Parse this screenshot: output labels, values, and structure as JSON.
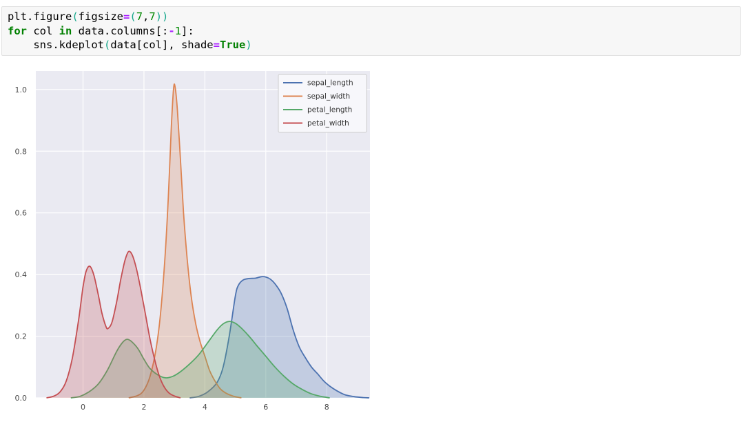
{
  "code_cell": {
    "colors": {
      "plain": "#000000",
      "keyword": "#008000",
      "number": "#008800",
      "operator": "#aa22ff",
      "bracket": "#17a88c"
    },
    "lines": [
      [
        {
          "t": "plt.figure",
          "s": "p"
        },
        {
          "t": "(",
          "s": "br"
        },
        {
          "t": "figsize",
          "s": "p"
        },
        {
          "t": "=",
          "s": "op"
        },
        {
          "t": "(",
          "s": "br"
        },
        {
          "t": "7",
          "s": "num"
        },
        {
          "t": ",",
          "s": "p"
        },
        {
          "t": "7",
          "s": "num"
        },
        {
          "t": "))",
          "s": "br"
        }
      ],
      [
        {
          "t": "for",
          "s": "kw"
        },
        {
          "t": " col ",
          "s": "p"
        },
        {
          "t": "in",
          "s": "kw"
        },
        {
          "t": " data.columns[:",
          "s": "p"
        },
        {
          "t": "-",
          "s": "op"
        },
        {
          "t": "1",
          "s": "num"
        },
        {
          "t": "]:",
          "s": "p"
        }
      ],
      [
        {
          "t": "    sns.kdeplot",
          "s": "p"
        },
        {
          "t": "(",
          "s": "br"
        },
        {
          "t": "data[col], shade",
          "s": "p"
        },
        {
          "t": "=",
          "s": "op"
        },
        {
          "t": "True",
          "s": "kw"
        },
        {
          "t": ")",
          "s": "br"
        }
      ]
    ]
  },
  "chart_data": {
    "type": "area",
    "subtype": "kde",
    "title": "",
    "xlabel": "",
    "ylabel": "",
    "grid": true,
    "background": "#eaeaf2",
    "gridline_color": "#ffffff",
    "legend_position": "upper right",
    "x_ticks": [
      0,
      2,
      4,
      6,
      8
    ],
    "y_ticks": [
      0.0,
      0.2,
      0.4,
      0.6,
      0.8,
      1.0
    ],
    "xlim": [
      -1.55,
      9.42
    ],
    "ylim": [
      0,
      1.06
    ],
    "fill_opacity": 0.25,
    "series": [
      {
        "name": "sepal_length",
        "color": "#4c72b0",
        "points": [
          [
            3.5,
            0
          ],
          [
            3.8,
            0.005
          ],
          [
            4.1,
            0.02
          ],
          [
            4.4,
            0.05
          ],
          [
            4.6,
            0.1
          ],
          [
            4.8,
            0.2
          ],
          [
            5.0,
            0.33
          ],
          [
            5.1,
            0.365
          ],
          [
            5.25,
            0.382
          ],
          [
            5.45,
            0.387
          ],
          [
            5.65,
            0.388
          ],
          [
            5.85,
            0.393
          ],
          [
            6.0,
            0.392
          ],
          [
            6.15,
            0.385
          ],
          [
            6.3,
            0.37
          ],
          [
            6.5,
            0.34
          ],
          [
            6.7,
            0.29
          ],
          [
            6.9,
            0.22
          ],
          [
            7.1,
            0.165
          ],
          [
            7.3,
            0.13
          ],
          [
            7.5,
            0.1
          ],
          [
            7.7,
            0.078
          ],
          [
            7.9,
            0.055
          ],
          [
            8.1,
            0.038
          ],
          [
            8.35,
            0.022
          ],
          [
            8.6,
            0.01
          ],
          [
            8.9,
            0.004
          ],
          [
            9.2,
            0.001
          ],
          [
            9.4,
            0
          ]
        ]
      },
      {
        "name": "sepal_width",
        "color": "#dd8452",
        "points": [
          [
            1.5,
            0
          ],
          [
            1.8,
            0.008
          ],
          [
            2.0,
            0.025
          ],
          [
            2.2,
            0.07
          ],
          [
            2.4,
            0.16
          ],
          [
            2.55,
            0.28
          ],
          [
            2.7,
            0.47
          ],
          [
            2.8,
            0.65
          ],
          [
            2.9,
            0.88
          ],
          [
            2.97,
            1.0
          ],
          [
            3.02,
            1.01
          ],
          [
            3.1,
            0.93
          ],
          [
            3.2,
            0.77
          ],
          [
            3.3,
            0.6
          ],
          [
            3.42,
            0.45
          ],
          [
            3.55,
            0.33
          ],
          [
            3.7,
            0.24
          ],
          [
            3.85,
            0.18
          ],
          [
            4.0,
            0.135
          ],
          [
            4.15,
            0.09
          ],
          [
            4.3,
            0.06
          ],
          [
            4.5,
            0.03
          ],
          [
            4.7,
            0.015
          ],
          [
            4.95,
            0.005
          ],
          [
            5.2,
            0
          ]
        ]
      },
      {
        "name": "petal_length",
        "color": "#55a868",
        "points": [
          [
            -0.4,
            0
          ],
          [
            -0.1,
            0.005
          ],
          [
            0.2,
            0.02
          ],
          [
            0.5,
            0.045
          ],
          [
            0.8,
            0.09
          ],
          [
            1.1,
            0.15
          ],
          [
            1.3,
            0.18
          ],
          [
            1.45,
            0.19
          ],
          [
            1.6,
            0.182
          ],
          [
            1.8,
            0.16
          ],
          [
            2.0,
            0.125
          ],
          [
            2.2,
            0.095
          ],
          [
            2.45,
            0.075
          ],
          [
            2.7,
            0.065
          ],
          [
            2.95,
            0.07
          ],
          [
            3.2,
            0.085
          ],
          [
            3.5,
            0.11
          ],
          [
            3.8,
            0.14
          ],
          [
            4.1,
            0.18
          ],
          [
            4.4,
            0.22
          ],
          [
            4.6,
            0.24
          ],
          [
            4.8,
            0.248
          ],
          [
            5.0,
            0.242
          ],
          [
            5.2,
            0.226
          ],
          [
            5.45,
            0.2
          ],
          [
            5.7,
            0.17
          ],
          [
            6.0,
            0.135
          ],
          [
            6.3,
            0.1
          ],
          [
            6.6,
            0.07
          ],
          [
            6.9,
            0.045
          ],
          [
            7.2,
            0.027
          ],
          [
            7.5,
            0.013
          ],
          [
            7.8,
            0.005
          ],
          [
            8.1,
            0
          ]
        ]
      },
      {
        "name": "petal_width",
        "color": "#c44e52",
        "points": [
          [
            -1.2,
            0
          ],
          [
            -0.95,
            0.006
          ],
          [
            -0.75,
            0.02
          ],
          [
            -0.55,
            0.055
          ],
          [
            -0.35,
            0.13
          ],
          [
            -0.15,
            0.25
          ],
          [
            0.0,
            0.36
          ],
          [
            0.1,
            0.41
          ],
          [
            0.22,
            0.427
          ],
          [
            0.35,
            0.4
          ],
          [
            0.5,
            0.335
          ],
          [
            0.62,
            0.275
          ],
          [
            0.75,
            0.232
          ],
          [
            0.82,
            0.225
          ],
          [
            0.95,
            0.245
          ],
          [
            1.1,
            0.31
          ],
          [
            1.25,
            0.39
          ],
          [
            1.38,
            0.447
          ],
          [
            1.5,
            0.475
          ],
          [
            1.62,
            0.462
          ],
          [
            1.75,
            0.42
          ],
          [
            1.9,
            0.35
          ],
          [
            2.05,
            0.27
          ],
          [
            2.2,
            0.19
          ],
          [
            2.35,
            0.125
          ],
          [
            2.5,
            0.072
          ],
          [
            2.65,
            0.038
          ],
          [
            2.82,
            0.016
          ],
          [
            3.0,
            0.006
          ],
          [
            3.2,
            0
          ]
        ]
      }
    ],
    "legend": {
      "labels": [
        "sepal_length",
        "sepal_width",
        "petal_length",
        "petal_width"
      ],
      "background": "#f7f7fb",
      "border_color": "#cccccc"
    }
  }
}
